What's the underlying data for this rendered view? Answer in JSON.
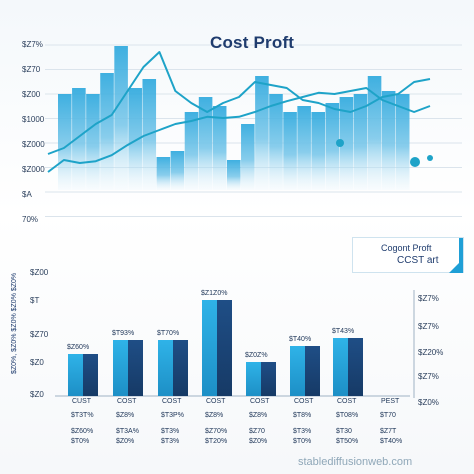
{
  "chart_data": [
    {
      "type": "bar",
      "role": "upper-blocks",
      "values": [
        230,
        240,
        230,
        265,
        310,
        240,
        255,
        125,
        135,
        200,
        225,
        210,
        120,
        180,
        260,
        230,
        200,
        210,
        200,
        215,
        225,
        230,
        260,
        235,
        230
      ],
      "ylim": [
        0,
        320
      ]
    },
    {
      "type": "line",
      "role": "upper-lines",
      "title": "Cost Proft",
      "series": [
        {
          "values": [
            130,
            140,
            160,
            180,
            195,
            235,
            275,
            300,
            235,
            215,
            200,
            215,
            225,
            250,
            245,
            240,
            220,
            215,
            205,
            200,
            210,
            225,
            230,
            250,
            255
          ]
        },
        {
          "values": [
            100,
            120,
            115,
            118,
            128,
            145,
            160,
            170,
            180,
            185,
            192,
            190,
            192,
            200,
            210,
            218,
            225,
            232,
            230,
            235,
            240,
            220,
            210,
            200,
            210
          ]
        }
      ],
      "y_tick_labels": [
        "$Z7%",
        "$Z70",
        "$Z00",
        "$1000",
        "$Z000",
        "$Z000",
        "$A",
        "70%"
      ],
      "ylim": [
        0,
        320
      ]
    },
    {
      "type": "bar",
      "role": "lower-bars",
      "categories": [
        "CUST",
        "COST",
        "COST",
        "COST",
        "COST",
        "COST",
        "COST",
        "PEST"
      ],
      "values": [
        105,
        140,
        140,
        240,
        85,
        125,
        145,
        0
      ],
      "bar_labels": [
        "$Z60%",
        "$T93%",
        "$T70%",
        "$Z1Z0%",
        "$Z0Z%",
        "$T40%",
        "$T43%",
        ""
      ],
      "sub_labels_1": [
        "$T3T%",
        "$Z8%",
        "$T3P%",
        "$Z8%",
        "$Z8%",
        "$T8%",
        "$T08%",
        "$T70"
      ],
      "sub_labels_2": [
        "$Z60%",
        "$T3A%",
        "$T3%",
        "$Z70%",
        "$Z70",
        "$T3%",
        "$T30",
        "$Z7T"
      ],
      "sub_labels_3": [
        "$T0%",
        "$Z0%",
        "$T3%",
        "$T20%",
        "$Z0%",
        "$T0%",
        "$T50%",
        "$T40%"
      ],
      "left_tick_labels": [
        "$Z00",
        "$T",
        "$Z70",
        "$Z0",
        "$Z0"
      ],
      "right_tick_labels": [
        "$Z7%",
        "$Z7%",
        "$Z20%",
        "$Z7%",
        "$Z0%"
      ],
      "ylabel": "$Z0%, $Z0% $Z0% $Z0% $Z0%",
      "ylim": [
        0,
        260
      ]
    }
  ],
  "legend": {
    "line1": "Cogont Proft",
    "line2": "CCST art"
  },
  "watermark": "stablediffusionweb.com",
  "colors": {
    "dark_blue": "#1f4e86",
    "light_blue": "#2aa7dd",
    "line": "#1ea3c8",
    "text": "#1d3557"
  }
}
